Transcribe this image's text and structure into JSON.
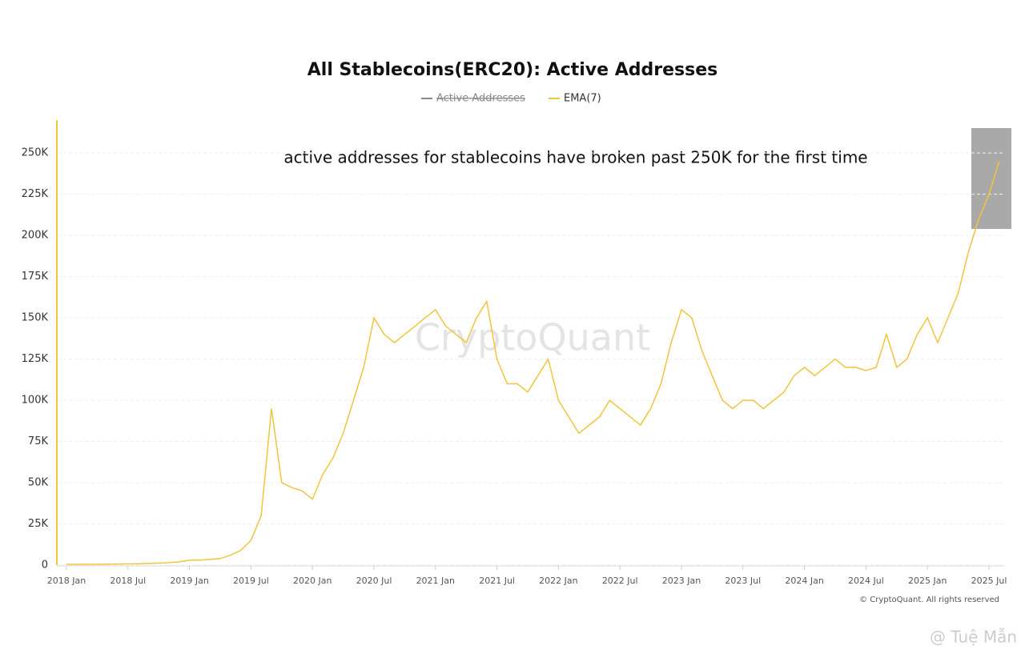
{
  "chart_data": {
    "type": "line",
    "title": "All Stablecoins(ERC20): Active Addresses",
    "annotation": "active addresses for stablecoins have broken past 250K for the first time",
    "watermark": "CryptoQuant",
    "credit": "© CryptoQuant. All rights reserved",
    "signature": "@ Tuệ Mẫn",
    "hidden_series": [
      {
        "name": "Active Addresses",
        "color": "#888888"
      }
    ],
    "x": [
      "2018 Jan",
      "2018 Feb",
      "2018 Mar",
      "2018 Apr",
      "2018 May",
      "2018 Jun",
      "2018 Jul",
      "2018 Aug",
      "2018 Sep",
      "2018 Oct",
      "2018 Nov",
      "2018 Dec",
      "2019 Jan",
      "2019 Feb",
      "2019 Mar",
      "2019 Apr",
      "2019 May",
      "2019 Jun",
      "2019 Jul",
      "2019 Aug",
      "2019 Sep",
      "2019 Oct",
      "2019 Nov",
      "2019 Dec",
      "2020 Jan",
      "2020 Feb",
      "2020 Mar",
      "2020 Apr",
      "2020 May",
      "2020 Jun",
      "2020 Jul",
      "2020 Aug",
      "2020 Sep",
      "2020 Oct",
      "2020 Nov",
      "2020 Dec",
      "2021 Jan",
      "2021 Feb",
      "2021 Mar",
      "2021 Apr",
      "2021 May",
      "2021 Jun",
      "2021 Jul",
      "2021 Aug",
      "2021 Sep",
      "2021 Oct",
      "2021 Nov",
      "2021 Dec",
      "2022 Jan",
      "2022 Feb",
      "2022 Mar",
      "2022 Apr",
      "2022 May",
      "2022 Jun",
      "2022 Jul",
      "2022 Aug",
      "2022 Sep",
      "2022 Oct",
      "2022 Nov",
      "2022 Dec",
      "2023 Jan",
      "2023 Feb",
      "2023 Mar",
      "2023 Apr",
      "2023 May",
      "2023 Jun",
      "2023 Jul",
      "2023 Aug",
      "2023 Sep",
      "2023 Oct",
      "2023 Nov",
      "2023 Dec",
      "2024 Jan",
      "2024 Feb",
      "2024 Mar",
      "2024 Apr",
      "2024 May",
      "2024 Jun",
      "2024 Jul",
      "2024 Aug",
      "2024 Sep",
      "2024 Oct",
      "2024 Nov",
      "2024 Dec",
      "2025 Jan",
      "2025 Feb",
      "2025 Mar",
      "2025 Apr",
      "2025 May",
      "2025 Jun",
      "2025 Jul",
      "2025 Aug"
    ],
    "series": [
      {
        "name": "EMA(7)",
        "color": "#f0c43c",
        "values": [
          500,
          500,
          500,
          500,
          600,
          700,
          800,
          800,
          1000,
          1200,
          1500,
          2000,
          3000,
          3000,
          3500,
          4000,
          6000,
          9000,
          15000,
          30000,
          95000,
          50000,
          47000,
          45000,
          40000,
          55000,
          65000,
          80000,
          100000,
          120000,
          150000,
          140000,
          135000,
          140000,
          145000,
          150000,
          155000,
          145000,
          140000,
          135000,
          150000,
          160000,
          125000,
          110000,
          110000,
          105000,
          115000,
          125000,
          100000,
          90000,
          80000,
          85000,
          90000,
          100000,
          95000,
          90000,
          85000,
          95000,
          110000,
          135000,
          155000,
          150000,
          130000,
          115000,
          100000,
          95000,
          100000,
          100000,
          95000,
          100000,
          105000,
          115000,
          120000,
          115000,
          120000,
          125000,
          120000,
          120000,
          118000,
          120000,
          140000,
          120000,
          125000,
          140000,
          150000,
          135000,
          150000,
          165000,
          190000,
          210000,
          225000,
          245000
        ]
      }
    ],
    "xticks": [
      "2018 Jan",
      "2018 Jul",
      "2019 Jan",
      "2019 Jul",
      "2020 Jan",
      "2020 Jul",
      "2021 Jan",
      "2021 Jul",
      "2022 Jan",
      "2022 Jul",
      "2023 Jan",
      "2023 Jul",
      "2024 Jan",
      "2024 Jul",
      "2025 Jan",
      "2025 Jul"
    ],
    "ylim": [
      0,
      270000
    ],
    "yticks": [
      0,
      {
        "value": 25000,
        "label": "25K"
      },
      {
        "value": 50000,
        "label": "50K"
      },
      {
        "value": 75000,
        "label": "75K"
      },
      {
        "value": 100000,
        "label": "100K"
      },
      {
        "value": 125000,
        "label": "125K"
      },
      {
        "value": 150000,
        "label": "150K"
      },
      {
        "value": 175000,
        "label": "175K"
      },
      {
        "value": 200000,
        "label": "200K"
      },
      {
        "value": 225000,
        "label": "225K"
      },
      {
        "value": 250000,
        "label": "250K"
      }
    ],
    "grid": true
  }
}
